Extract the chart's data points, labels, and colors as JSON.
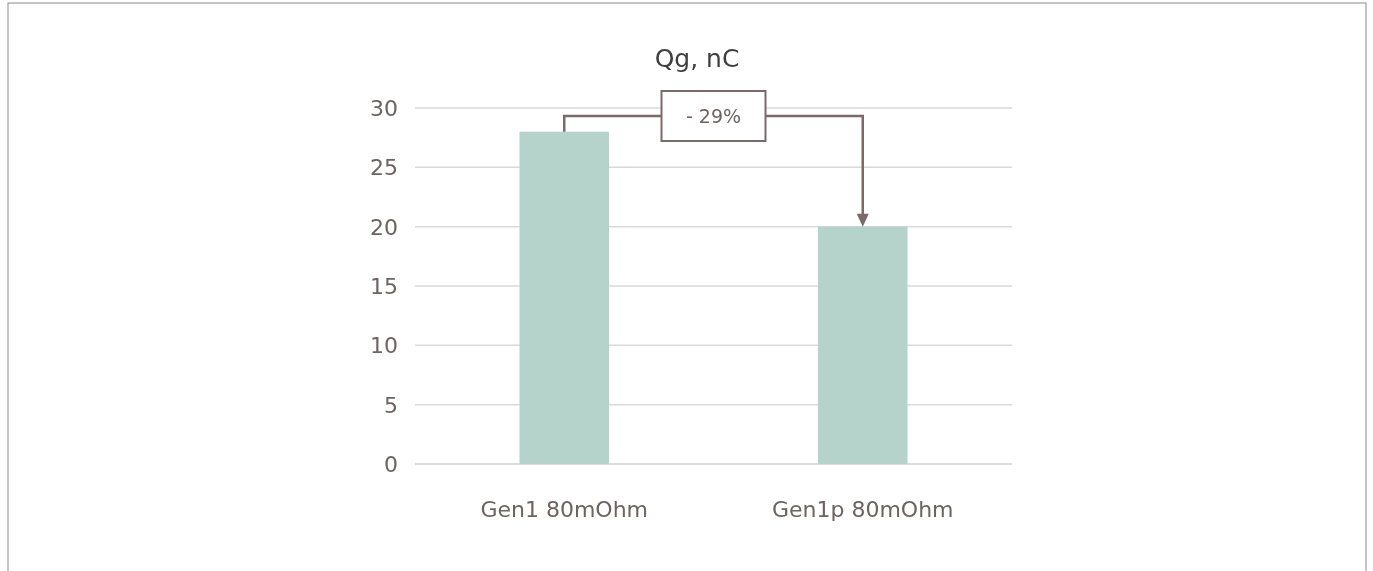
{
  "chart_data": {
    "type": "bar",
    "title": "Qg, nC",
    "categories": [
      "Gen1 80mOhm",
      "Gen1p 80mOhm"
    ],
    "values": [
      28,
      20
    ],
    "color": "#b5d3ca",
    "ylim": [
      0,
      30
    ],
    "yticks": [
      0,
      5,
      10,
      15,
      20,
      25,
      30
    ],
    "grid": "y",
    "annotations": [
      "- 29%"
    ]
  }
}
